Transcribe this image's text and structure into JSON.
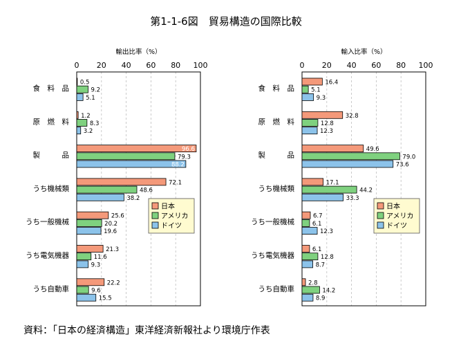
{
  "title": "第1-1-6図　貿易構造の国際比較",
  "source": "資料：「日本の経済構造」東洋経済新報社より環境庁作表",
  "colors": {
    "japan": "#f4997a",
    "usa": "#7fd17f",
    "germany": "#8cc3ea",
    "legend_bg": "#fffbd0"
  },
  "chart_data": [
    {
      "type": "bar",
      "orientation": "horizontal",
      "title": "輸出比率（%）",
      "ylim": [
        0,
        100
      ],
      "ticks": [
        0,
        20,
        40,
        60,
        80,
        100
      ],
      "grid": true,
      "legend_position": "lower-right",
      "categories": [
        "食　料　品",
        "原　燃　料",
        "製　　　品",
        "うち機械類",
        "うち一般機械",
        "うち電気機器",
        "うち自動車"
      ],
      "series": [
        {
          "name": "日本",
          "values": [
            0.5,
            1.2,
            96.6,
            72.1,
            25.6,
            21.3,
            22.2
          ]
        },
        {
          "name": "アメリカ",
          "values": [
            9.2,
            8.3,
            79.3,
            48.6,
            20.2,
            11.6,
            9.6
          ]
        },
        {
          "name": "ドイツ",
          "values": [
            5.1,
            3.2,
            88.2,
            38.2,
            19.6,
            9.3,
            15.5
          ]
        }
      ]
    },
    {
      "type": "bar",
      "orientation": "horizontal",
      "title": "輸入比率（%）",
      "ylim": [
        0,
        100
      ],
      "ticks": [
        0,
        20,
        40,
        60,
        80,
        100
      ],
      "grid": true,
      "legend_position": "lower-right",
      "categories": [
        "食　料　品",
        "原　燃　料",
        "製　　　品",
        "うち機械類",
        "うち一般機械",
        "うち電気機器",
        "うち自動車"
      ],
      "series": [
        {
          "name": "日本",
          "values": [
            16.4,
            32.8,
            49.6,
            17.1,
            6.7,
            6.1,
            2.8
          ]
        },
        {
          "name": "アメリカ",
          "values": [
            5.1,
            12.8,
            79.0,
            44.2,
            6.1,
            12.8,
            14.2
          ]
        },
        {
          "name": "ドイツ",
          "values": [
            9.3,
            12.3,
            73.6,
            33.3,
            12.3,
            8.7,
            8.9
          ]
        }
      ]
    }
  ]
}
